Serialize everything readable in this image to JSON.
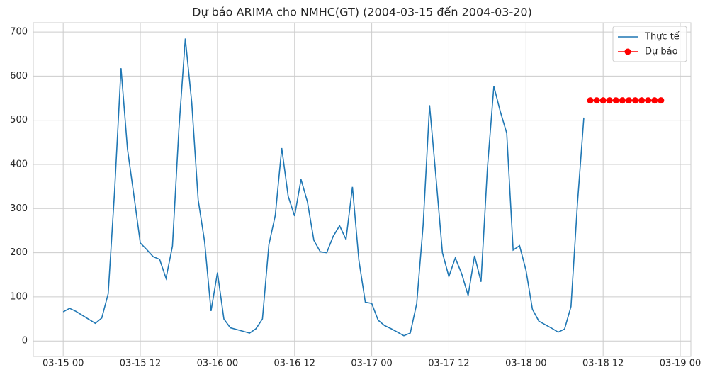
{
  "chart_data": {
    "type": "line",
    "title": "Dự báo ARIMA cho NMHC(GT) (2004-03-15 đến 2004-03-20)",
    "series": [
      {
        "name": "Thực tế",
        "color": "#1f77b4",
        "x": [
          "03-15 00",
          "03-15 01",
          "03-15 02",
          "03-15 03",
          "03-15 04",
          "03-15 05",
          "03-15 06",
          "03-15 07",
          "03-15 08",
          "03-15 09",
          "03-15 10",
          "03-15 11",
          "03-15 12",
          "03-15 13",
          "03-15 14",
          "03-15 15",
          "03-15 16",
          "03-15 17",
          "03-15 18",
          "03-15 19",
          "03-15 20",
          "03-15 21",
          "03-15 22",
          "03-15 23",
          "03-16 00",
          "03-16 01",
          "03-16 02",
          "03-16 03",
          "03-16 04",
          "03-16 05",
          "03-16 06",
          "03-16 07",
          "03-16 08",
          "03-16 09",
          "03-16 10",
          "03-16 11",
          "03-16 12",
          "03-16 13",
          "03-16 14",
          "03-16 15",
          "03-16 16",
          "03-16 17",
          "03-16 18",
          "03-16 19",
          "03-16 20",
          "03-16 21",
          "03-16 22",
          "03-16 23",
          "03-17 00",
          "03-17 01",
          "03-17 02",
          "03-17 03",
          "03-17 04",
          "03-17 05",
          "03-17 06",
          "03-17 07",
          "03-17 08",
          "03-17 09",
          "03-17 10",
          "03-17 11",
          "03-17 12",
          "03-17 13",
          "03-17 14",
          "03-17 15",
          "03-17 16",
          "03-17 17",
          "03-17 18",
          "03-17 19",
          "03-17 20",
          "03-17 21",
          "03-17 22",
          "03-17 23",
          "03-18 00",
          "03-18 01",
          "03-18 02",
          "03-18 03",
          "03-18 04",
          "03-18 05",
          "03-18 06",
          "03-18 07",
          "03-18 08",
          "03-18 09"
        ],
        "values": [
          66,
          74,
          67,
          58,
          49,
          40,
          52,
          107,
          340,
          618,
          435,
          330,
          222,
          207,
          191,
          185,
          142,
          215,
          480,
          685,
          540,
          320,
          225,
          68,
          155,
          50,
          30,
          26,
          22,
          18,
          28,
          50,
          218,
          285,
          437,
          328,
          283,
          366,
          315,
          228,
          202,
          200,
          237,
          261,
          230,
          349,
          183,
          88,
          85,
          47,
          35,
          28,
          20,
          12,
          18,
          85,
          263,
          534,
          370,
          200,
          146,
          188,
          152,
          103,
          193,
          134,
          392,
          577,
          520,
          471,
          206,
          216,
          160,
          72,
          45,
          37,
          29,
          20,
          27,
          78,
          310,
          506
        ]
      },
      {
        "name": "Dự báo",
        "color": "#ff0000",
        "marker": "o",
        "x": [
          "03-18 10",
          "03-18 11",
          "03-18 12",
          "03-18 13",
          "03-18 14",
          "03-18 15",
          "03-18 16",
          "03-18 17",
          "03-18 18",
          "03-18 19",
          "03-18 20",
          "03-18 21"
        ],
        "values": [
          545,
          545,
          545,
          545,
          545,
          545,
          545,
          545,
          545,
          545,
          545,
          545
        ]
      }
    ],
    "xlim": [
      "03-14 19:21",
      "03-19 01:39"
    ],
    "xticks": [
      "03-15 00",
      "03-15 12",
      "03-16 00",
      "03-16 12",
      "03-17 00",
      "03-17 12",
      "03-18 00",
      "03-18 12",
      "03-19 00"
    ],
    "ylim": [
      -35,
      721
    ],
    "yticks": [
      0,
      100,
      200,
      300,
      400,
      500,
      600,
      700
    ],
    "grid": true,
    "legend": "upper right"
  }
}
